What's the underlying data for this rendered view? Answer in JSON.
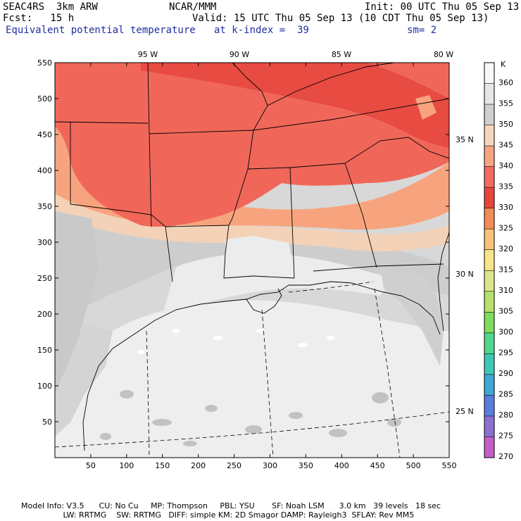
{
  "header": {
    "model": "SEAC4RS  3km ARW",
    "org": "NCAR/MMM",
    "init": "Init: 00 UTC Thu 05 Sep 13",
    "fcst": "Fcst:   15 h",
    "valid": "Valid: 15 UTC Thu 05 Sep 13 (10 CDT Thu 05 Sep 13)",
    "field": "Equivalent potential temperature",
    "level": "at k-index =  39",
    "smooth": "sm= 2"
  },
  "map": {
    "x_ticks": [
      "50",
      "100",
      "150",
      "200",
      "250",
      "300",
      "350",
      "400",
      "450",
      "500",
      "550"
    ],
    "y_ticks": [
      "550",
      "500",
      "450",
      "400",
      "350",
      "300",
      "250",
      "200",
      "150",
      "100",
      "50"
    ],
    "lon_labels": [
      "95 W",
      "90 W",
      "85 W",
      "80 W"
    ],
    "lat_labels": [
      "35 N",
      "30 N",
      "25 N"
    ]
  },
  "colorbar": {
    "unit": "K",
    "labels": [
      "360",
      "355",
      "350",
      "345",
      "340",
      "335",
      "330",
      "325",
      "320",
      "315",
      "310",
      "305",
      "300",
      "295",
      "290",
      "285",
      "280",
      "275",
      "270"
    ],
    "colors": [
      "#f7f7f7",
      "#e6e6e6",
      "#cfcfcf",
      "#f5d7c0",
      "#f8a482",
      "#f26b5c",
      "#e8463c",
      "#f48a55",
      "#f9c27a",
      "#f7e58a",
      "#dbe68a",
      "#b6e06d",
      "#7fdc5c",
      "#4fd88f",
      "#3cc8b5",
      "#3ca9d6",
      "#5a7ee0",
      "#8a70d0",
      "#c45fc8"
    ]
  },
  "footer": {
    "line1": "Model Info: V3.5      CU: No Cu     MP: Thompson     PBL: YSU       SF: Noah LSM      3.0 km   39 levels   18 sec",
    "line2": "                 LW: RRTMG    SW: RRTMG   DIFF: simple KM: 2D Smagor DAMP: Rayleigh3  SFLAY: Rev MM5"
  }
}
